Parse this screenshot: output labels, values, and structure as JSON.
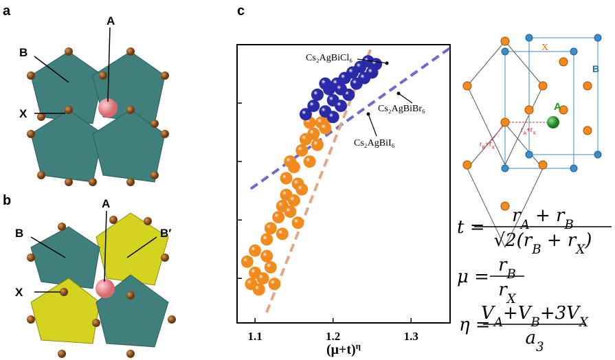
{
  "panels": {
    "a": {
      "label": "a",
      "site_a": "A",
      "site_b": "B",
      "site_x": "X"
    },
    "b": {
      "label": "b",
      "site_a": "A",
      "site_b": "B",
      "site_b2": "B′",
      "site_x": "X"
    },
    "cube": {
      "x": "X",
      "b": "B",
      "a": "A",
      "ra_rx": [
        "r",
        "A",
        "+r",
        "X"
      ],
      "rb_rx": [
        "r",
        "B",
        "+r",
        "X"
      ]
    },
    "formulas": {
      "t": {
        "lhs": "t =",
        "num": [
          "r",
          "A",
          " + r",
          "B"
        ],
        "den": [
          "√2(r",
          "B",
          " + r",
          "X",
          ")"
        ]
      },
      "mu": {
        "lhs": "μ =",
        "num": [
          "r",
          "B"
        ],
        "den": [
          "r",
          "X"
        ]
      },
      "eta": {
        "lhs": "η =",
        "num": [
          "V",
          "A",
          "+V",
          "B",
          "+3V",
          "X"
        ],
        "den": [
          "a",
          "3"
        ]
      }
    }
  },
  "chart_data": {
    "type": "scatter",
    "panel_label": "c",
    "x_label": "(μ+t)",
    "x_label_sup": "η",
    "xlim": [
      1.077,
      1.35
    ],
    "ylim": [
      0,
      5
    ],
    "xticks": [
      1.1,
      1.2,
      1.3
    ],
    "yticks": [
      0.8,
      1.85,
      2.9,
      3.95
    ],
    "series": [
      {
        "color": "#f28a1e",
        "x": [
          1.095,
          1.1,
          1.105,
          1.09,
          1.115,
          1.11,
          1.12,
          1.1,
          1.125,
          1.115,
          1.12,
          1.13,
          1.135,
          1.14,
          1.145,
          1.15,
          1.14,
          1.155,
          1.15,
          1.16,
          1.145,
          1.16,
          1.165,
          1.17,
          1.175,
          1.18,
          1.185,
          1.19,
          1.195,
          1.17,
          1.155,
          1.135
        ],
        "values": [
          0.7,
          0.9,
          0.6,
          1.1,
          1.2,
          0.8,
          1.0,
          1.3,
          0.7,
          1.5,
          1.7,
          1.9,
          2.1,
          2.3,
          2.0,
          2.2,
          2.6,
          2.5,
          2.8,
          2.4,
          2.9,
          3.1,
          3.3,
          2.9,
          3.4,
          3.2,
          3.6,
          3.5,
          3.7,
          3.6,
          1.8,
          1.6
        ]
      },
      {
        "color": "#2a2aa8",
        "x": [
          1.165,
          1.175,
          1.18,
          1.19,
          1.195,
          1.2,
          1.205,
          1.21,
          1.215,
          1.22,
          1.225,
          1.23,
          1.235,
          1.24,
          1.245,
          1.25,
          1.255,
          1.21,
          1.2,
          1.19
        ],
        "values": [
          3.75,
          3.9,
          4.1,
          3.8,
          4.2,
          4.0,
          4.3,
          3.9,
          4.4,
          4.1,
          4.5,
          4.3,
          4.6,
          4.4,
          4.7,
          4.5,
          4.65,
          4.2,
          3.7,
          4.3
        ]
      }
    ],
    "fit_lines": [
      {
        "color": "#6a6ad8",
        "x": [
          1.0946,
          1.35
        ],
        "values": [
          2.41,
          4.94
        ]
      },
      {
        "color": "#e0a888",
        "x": [
          1.1149,
          1.2488
        ],
        "values": [
          0.19,
          4.94
        ]
      }
    ],
    "annotations": [
      {
        "text": "Cs₂AgBiCl₆"
      },
      {
        "text": "Cs₂AgBiBr₆"
      },
      {
        "text": "Cs₂AgBiI₆"
      }
    ]
  }
}
